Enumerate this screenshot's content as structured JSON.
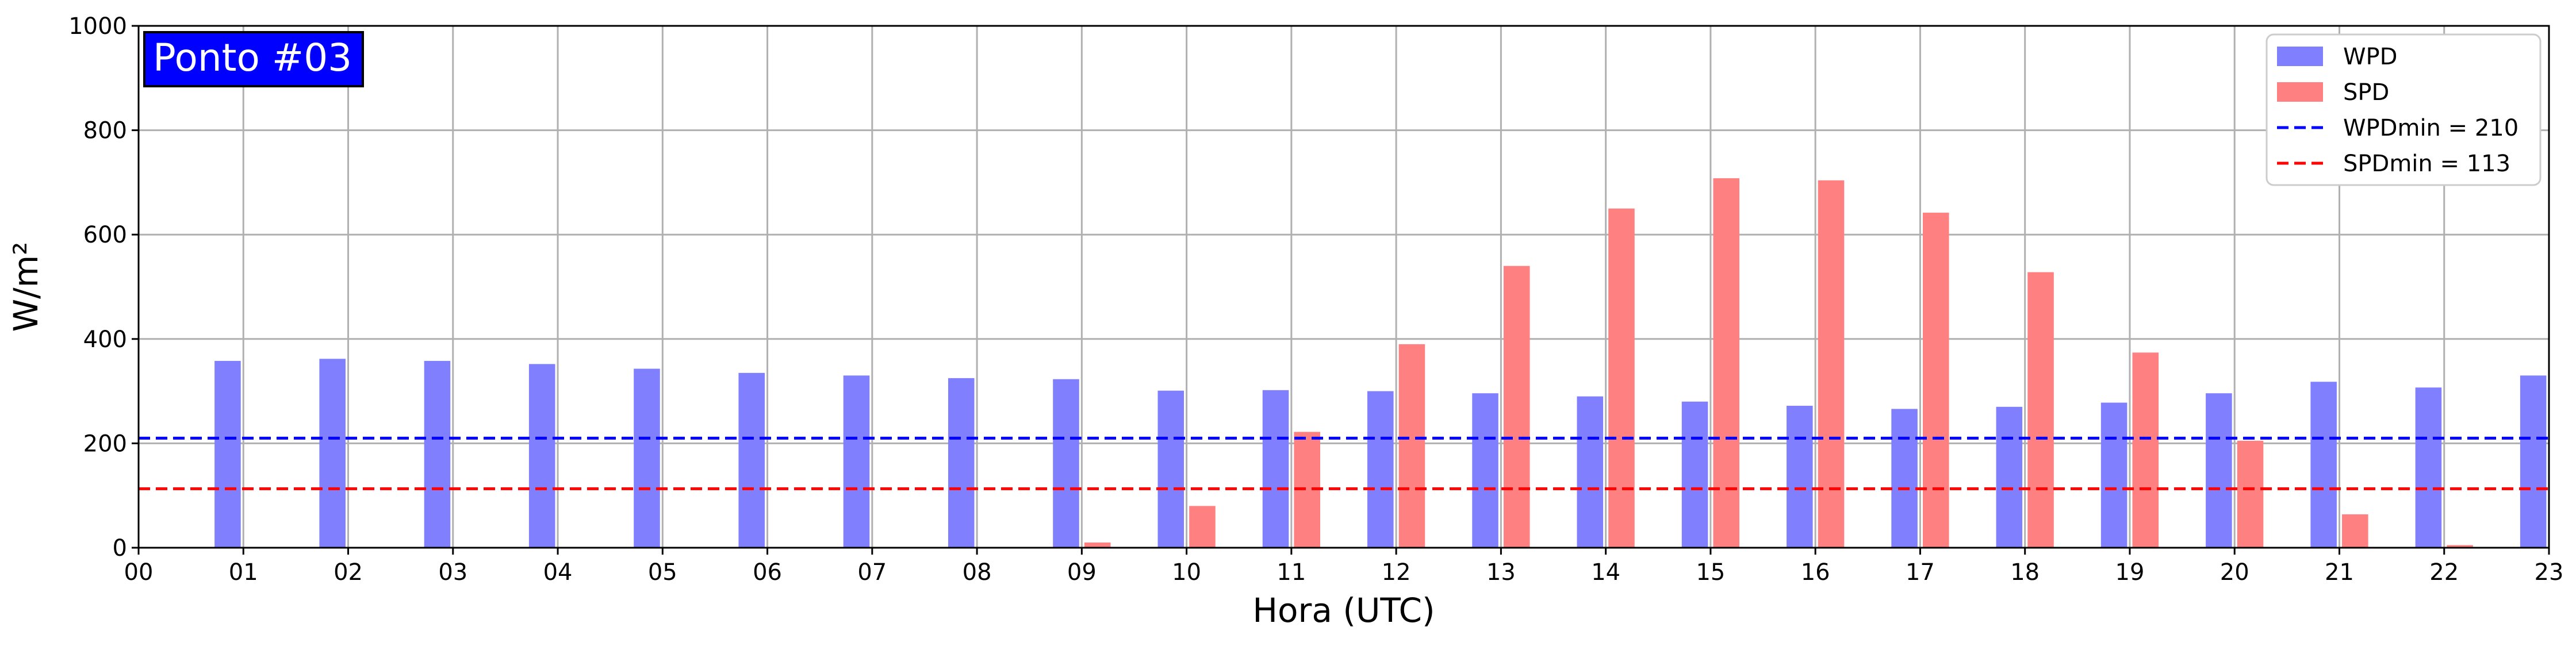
{
  "chart_data": {
    "type": "bar",
    "title_badge": "Ponto #03",
    "xlabel": "Hora (UTC)",
    "ylabel": "W/m²",
    "ylim": [
      0,
      1000
    ],
    "xlim": [
      0,
      23
    ],
    "yticks": [
      "0",
      "200",
      "400",
      "600",
      "800",
      "1000"
    ],
    "xticks": [
      "00",
      "01",
      "02",
      "03",
      "04",
      "05",
      "06",
      "07",
      "08",
      "09",
      "10",
      "11",
      "12",
      "13",
      "14",
      "15",
      "16",
      "17",
      "18",
      "19",
      "20",
      "21",
      "22",
      "23"
    ],
    "grid": true,
    "legend_position": "top-right",
    "categories": [
      1,
      2,
      3,
      4,
      5,
      6,
      7,
      8,
      9,
      10,
      11,
      12,
      13,
      14,
      15,
      16,
      17,
      18,
      19,
      20,
      21,
      22,
      23
    ],
    "series": [
      {
        "name": "WPD",
        "color": "#8080ff",
        "values": [
          358,
          362,
          358,
          352,
          343,
          335,
          330,
          325,
          323,
          301,
          302,
          300,
          296,
          290,
          280,
          272,
          266,
          270,
          278,
          296,
          318,
          307,
          330
        ]
      },
      {
        "name": "SPD",
        "color": "#ff8080",
        "values": [
          0,
          0,
          0,
          0,
          0,
          0,
          0,
          0,
          10,
          80,
          222,
          390,
          540,
          650,
          708,
          704,
          642,
          528,
          374,
          205,
          64,
          5,
          0
        ]
      }
    ],
    "reference_lines": [
      {
        "label": "WPDmin = 210",
        "value": 210,
        "color": "#0000ff"
      },
      {
        "label": "SPDmin = 113",
        "value": 113,
        "color": "#ff0000"
      }
    ]
  }
}
